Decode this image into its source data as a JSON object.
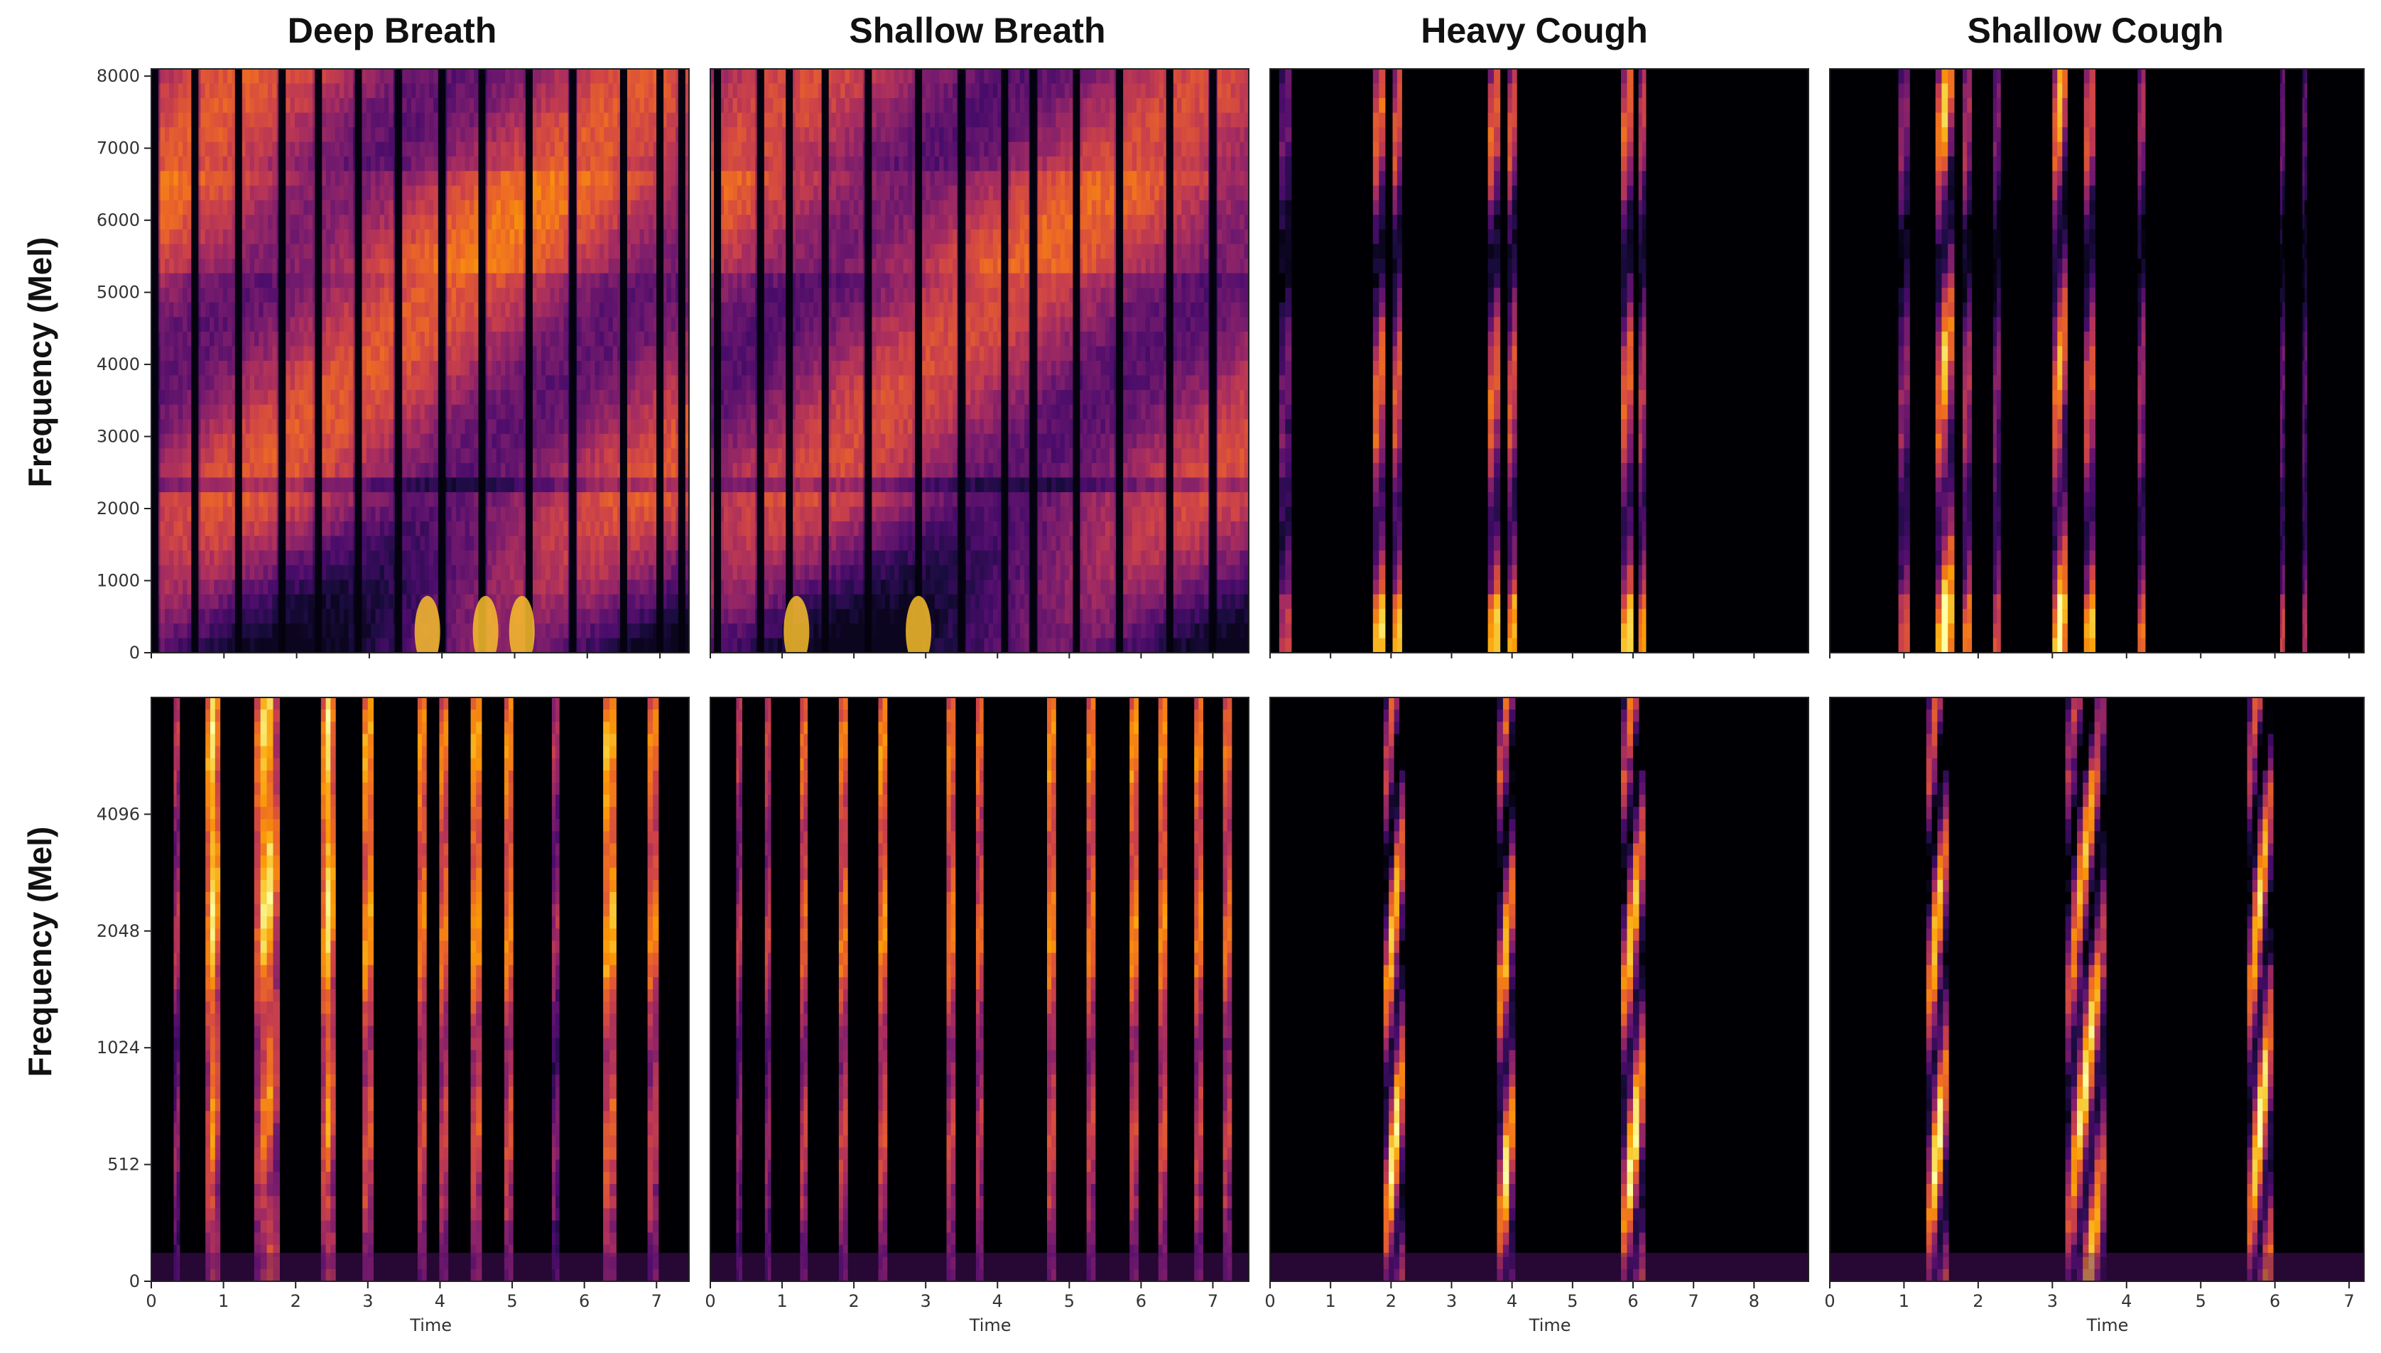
{
  "figure": {
    "column_titles": [
      "Deep Breath",
      "Shallow Breath",
      "Heavy Cough",
      "Shallow Cough"
    ],
    "row_ylabels": [
      "Frequency (Mel)",
      "Frequency (Mel)"
    ]
  },
  "colors": {
    "colormap": [
      "#000004",
      "#1b0c41",
      "#4a0c6b",
      "#781c6d",
      "#a52c60",
      "#cf4446",
      "#ed6925",
      "#fb9b06",
      "#f7d13d",
      "#fcffa4"
    ],
    "axis": "#222222",
    "text": "#111111"
  },
  "chart_data": [
    {
      "type": "heatmap",
      "title": "Deep Breath",
      "row": "top",
      "ylabel": "Frequency (Mel)",
      "xlabel": "",
      "yticks": [
        0,
        1000,
        2000,
        3000,
        4000,
        5000,
        6000,
        7000,
        8000
      ],
      "ytick_labels": [
        "0",
        "1000",
        "2000",
        "3000",
        "4000",
        "5000",
        "6000",
        "7000",
        "8000"
      ],
      "xticks": [],
      "ylim": [
        0,
        8100
      ],
      "xlim": [
        0,
        7.4
      ],
      "gaps": [
        0.05,
        0.6,
        1.2,
        1.8,
        2.3,
        2.85,
        3.4,
        4.0,
        4.55,
        5.2,
        5.8,
        6.5,
        7.0,
        7.3
      ],
      "intensity": 0.62,
      "style": "breath"
    },
    {
      "type": "heatmap",
      "title": "Shallow Breath",
      "row": "top",
      "ylabel": "",
      "xlabel": "",
      "yticks": [],
      "ytick_labels": [],
      "xticks": [],
      "ylim": [
        0,
        8100
      ],
      "xlim": [
        0,
        7.5
      ],
      "gaps": [
        0.1,
        0.7,
        1.1,
        1.6,
        2.2,
        2.9,
        3.5,
        4.1,
        4.5,
        5.1,
        5.7,
        6.4,
        7.0
      ],
      "intensity": 0.58,
      "style": "breath"
    },
    {
      "type": "heatmap",
      "title": "Heavy Cough",
      "row": "top",
      "ylabel": "",
      "xlabel": "",
      "yticks": [],
      "ytick_labels": [],
      "xticks": [],
      "ylim": [
        0,
        8100
      ],
      "xlim": [
        0,
        8.9
      ],
      "bursts": [
        [
          0.25,
          0.2,
          0.35
        ],
        [
          1.8,
          0.2,
          0.75
        ],
        [
          2.1,
          0.15,
          0.7
        ],
        [
          3.7,
          0.2,
          0.75
        ],
        [
          4.0,
          0.15,
          0.7
        ],
        [
          5.9,
          0.2,
          0.75
        ],
        [
          6.15,
          0.12,
          0.6
        ]
      ],
      "style": "cough"
    },
    {
      "type": "heatmap",
      "title": "Shallow Cough",
      "row": "top",
      "ylabel": "",
      "xlabel": "",
      "yticks": [],
      "ytick_labels": [],
      "xticks": [],
      "ylim": [
        0,
        8100
      ],
      "xlim": [
        0,
        7.2
      ],
      "bursts": [
        [
          1.0,
          0.15,
          0.45
        ],
        [
          1.55,
          0.25,
          0.9
        ],
        [
          1.85,
          0.12,
          0.55
        ],
        [
          2.25,
          0.1,
          0.4
        ],
        [
          3.1,
          0.2,
          0.85
        ],
        [
          3.5,
          0.15,
          0.7
        ],
        [
          4.2,
          0.1,
          0.5
        ],
        [
          6.1,
          0.06,
          0.35
        ],
        [
          6.4,
          0.06,
          0.3
        ]
      ],
      "style": "cough"
    },
    {
      "type": "heatmap",
      "title": "",
      "row": "bottom",
      "ylabel": "Frequency (Mel)",
      "xlabel": "Time",
      "yscale": "mel",
      "yticks": [
        0,
        512,
        1024,
        2048,
        4096
      ],
      "ytick_labels": [
        "0",
        "512",
        "1024",
        "2048",
        "4096"
      ],
      "xticks": [
        0,
        1,
        2,
        3,
        4,
        5,
        6,
        7
      ],
      "xtick_labels": [
        "0",
        "1",
        "2",
        "3",
        "4",
        "5",
        "6",
        "7"
      ],
      "xlim": [
        0,
        7.45
      ],
      "bursts": [
        [
          0.35,
          0.08,
          0.5
        ],
        [
          0.85,
          0.2,
          0.95
        ],
        [
          1.6,
          0.35,
          0.9
        ],
        [
          2.45,
          0.2,
          0.95
        ],
        [
          3.0,
          0.15,
          0.85
        ],
        [
          3.75,
          0.12,
          0.8
        ],
        [
          4.05,
          0.12,
          0.75
        ],
        [
          4.5,
          0.15,
          0.85
        ],
        [
          4.95,
          0.12,
          0.8
        ],
        [
          5.6,
          0.1,
          0.45
        ],
        [
          6.35,
          0.18,
          0.9
        ],
        [
          6.95,
          0.15,
          0.75
        ]
      ],
      "style": "mel"
    },
    {
      "type": "heatmap",
      "title": "",
      "row": "bottom",
      "ylabel": "",
      "xlabel": "Time",
      "yscale": "mel",
      "yticks": [],
      "ytick_labels": [],
      "xticks": [
        0,
        1,
        2,
        3,
        4,
        5,
        6,
        7
      ],
      "xtick_labels": [
        "0",
        "1",
        "2",
        "3",
        "4",
        "5",
        "6",
        "7"
      ],
      "xlim": [
        0,
        7.5
      ],
      "bursts": [
        [
          0.4,
          0.08,
          0.5
        ],
        [
          0.8,
          0.08,
          0.55
        ],
        [
          1.3,
          0.1,
          0.7
        ],
        [
          1.85,
          0.12,
          0.75
        ],
        [
          2.4,
          0.12,
          0.8
        ],
        [
          3.35,
          0.12,
          0.75
        ],
        [
          3.75,
          0.1,
          0.7
        ],
        [
          4.75,
          0.12,
          0.8
        ],
        [
          5.3,
          0.12,
          0.75
        ],
        [
          5.9,
          0.12,
          0.8
        ],
        [
          6.3,
          0.12,
          0.8
        ],
        [
          6.8,
          0.12,
          0.75
        ],
        [
          7.2,
          0.12,
          0.7
        ]
      ],
      "style": "mel"
    },
    {
      "type": "heatmap",
      "title": "",
      "row": "bottom",
      "ylabel": "",
      "xlabel": "Time",
      "yscale": "mel",
      "yticks": [],
      "ytick_labels": [],
      "xticks": [
        0,
        1,
        2,
        3,
        4,
        5,
        6,
        7,
        8
      ],
      "xtick_labels": [
        "0",
        "1",
        "2",
        "3",
        "4",
        "5",
        "6",
        "7",
        "8"
      ],
      "xlim": [
        0,
        8.9
      ],
      "bursts": [
        [
          2.05,
          0.35,
          0.9
        ],
        [
          3.9,
          0.3,
          0.85
        ],
        [
          6.0,
          0.4,
          0.9
        ]
      ],
      "style": "mel-cough"
    },
    {
      "type": "heatmap",
      "title": "",
      "row": "bottom",
      "ylabel": "",
      "xlabel": "Time",
      "yscale": "mel",
      "yticks": [],
      "ytick_labels": [],
      "xticks": [
        0,
        1,
        2,
        3,
        4,
        5,
        6,
        7
      ],
      "xtick_labels": [
        "0",
        "1",
        "2",
        "3",
        "4",
        "5",
        "6",
        "7"
      ],
      "xlim": [
        0,
        7.2
      ],
      "bursts": [
        [
          1.45,
          0.3,
          0.9
        ],
        [
          3.45,
          0.55,
          0.85
        ],
        [
          5.8,
          0.35,
          0.9
        ]
      ],
      "style": "mel-cough"
    }
  ]
}
